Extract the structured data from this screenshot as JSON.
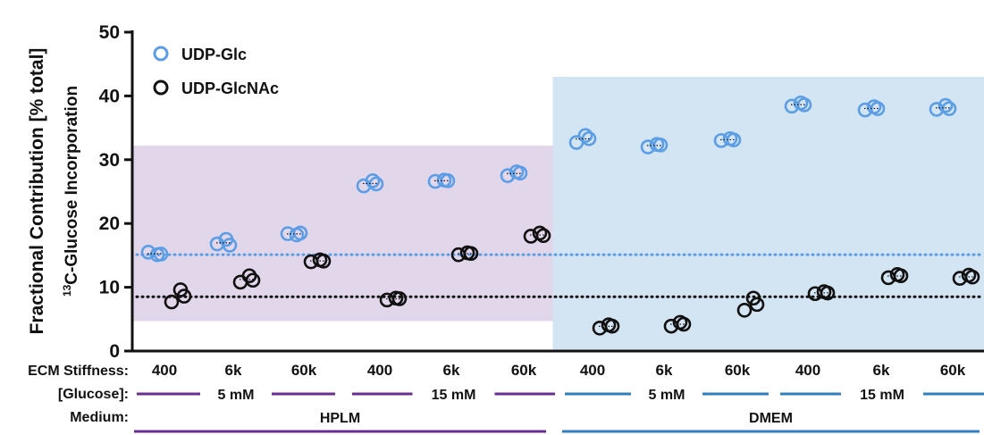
{
  "chart_data": {
    "type": "scatter",
    "ylabel_line1": "Fractional Contribution [% total]",
    "ylabel_line2_sup": "13",
    "ylabel_line2": "C-Glucose Incorporation",
    "ylim": [
      0,
      50
    ],
    "y_ticks": [
      "0",
      "10",
      "20",
      "30",
      "40",
      "50"
    ],
    "categories": [
      "400",
      "6k",
      "60k",
      "400",
      "6k",
      "60k",
      "400",
      "6k",
      "60k",
      "400",
      "6k",
      "60k"
    ],
    "series": [
      {
        "name": "UDP-Glc",
        "color": "#5b9ee6",
        "values": [
          [
            15.5,
            15.1,
            15.2
          ],
          [
            16.8,
            17.5,
            16.6
          ],
          [
            18.4,
            18.2,
            18.5
          ],
          [
            25.9,
            26.7,
            26.2
          ],
          [
            26.6,
            26.8,
            26.7
          ],
          [
            27.5,
            28.1,
            27.9
          ],
          [
            32.7,
            33.8,
            33.3
          ],
          [
            32.0,
            32.4,
            32.3
          ],
          [
            33.0,
            33.3,
            33.1
          ],
          [
            38.4,
            38.9,
            38.6
          ],
          [
            37.8,
            38.3,
            38.0
          ],
          [
            37.9,
            38.5,
            38.0
          ]
        ]
      },
      {
        "name": "UDP-GlcNAc",
        "color": "#111111",
        "values": [
          [
            7.7,
            9.6,
            8.6
          ],
          [
            10.8,
            11.8,
            11.1
          ],
          [
            14.0,
            14.3,
            14.1
          ],
          [
            8.0,
            8.3,
            8.2
          ],
          [
            15.1,
            15.4,
            15.3
          ],
          [
            18.0,
            18.5,
            18.1
          ],
          [
            3.6,
            4.1,
            3.9
          ],
          [
            3.9,
            4.5,
            4.2
          ],
          [
            6.4,
            8.3,
            7.3
          ],
          [
            9.0,
            9.3,
            9.1
          ],
          [
            11.5,
            12.0,
            11.8
          ],
          [
            11.4,
            11.9,
            11.6
          ]
        ]
      }
    ],
    "reference_lines": [
      {
        "series": "UDP-Glc",
        "y": 15.1,
        "color": "#5b9ee6",
        "style": "dotted"
      },
      {
        "series": "UDP-GlcNAc",
        "y": 8.5,
        "color": "#111111",
        "style": "dotted"
      }
    ],
    "shaded_regions": [
      {
        "medium": "HPLM",
        "group_start": 0,
        "group_end": 5,
        "y_from": 4.7,
        "y_to": 32.2,
        "color": "#e2d6ea"
      },
      {
        "medium": "DMEM",
        "group_start": 6,
        "group_end": 11,
        "y_from": 0,
        "y_to": 43,
        "color": "#d3e4f2"
      }
    ],
    "legend_placement": "top-left",
    "row_labels": {
      "stiffness": "ECM Stiffness:",
      "glucose": "[Glucose]:",
      "medium": "Medium:"
    },
    "glucose_groups": [
      {
        "label": "5 mM",
        "group_start": 0,
        "group_end": 2,
        "color": "#6a2d91"
      },
      {
        "label": "15 mM",
        "group_start": 3,
        "group_end": 5,
        "color": "#6a2d91"
      },
      {
        "label": "5 mM",
        "group_start": 6,
        "group_end": 8,
        "color": "#2f7fc1"
      },
      {
        "label": "15 mM",
        "group_start": 9,
        "group_end": 11,
        "color": "#2f7fc1"
      }
    ],
    "medium_groups": [
      {
        "label": "HPLM",
        "group_start": 0,
        "group_end": 5,
        "color": "#6a2d91"
      },
      {
        "label": "DMEM",
        "group_start": 6,
        "group_end": 11,
        "color": "#2f7fc1"
      }
    ]
  }
}
